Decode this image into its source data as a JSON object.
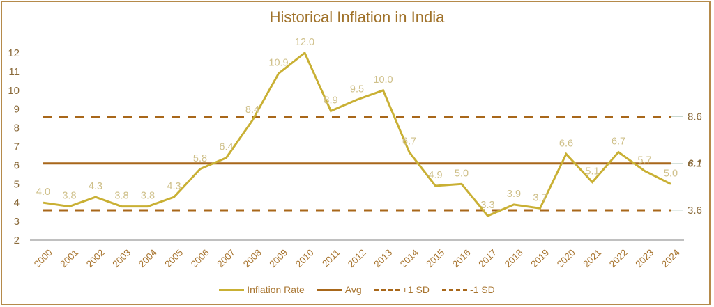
{
  "chart_data": {
    "type": "line",
    "title": "Historical Inflation in India",
    "xlabel": "",
    "ylabel": "",
    "ylim": [
      2,
      12
    ],
    "yticks": [
      "2",
      "3",
      "4",
      "5",
      "6",
      "7",
      "8",
      "9",
      "10",
      "11",
      "12"
    ],
    "grid": false,
    "legend_position": "bottom",
    "categories": [
      "2000",
      "2001",
      "2002",
      "2003",
      "2004",
      "2005",
      "2006",
      "2007",
      "2008",
      "2009",
      "2010",
      "2011",
      "2012",
      "2013",
      "2014",
      "2015",
      "2016",
      "2017",
      "2018",
      "2019",
      "2020",
      "2021",
      "2022",
      "2023",
      "2024"
    ],
    "series": [
      {
        "name": "Inflation Rate",
        "color": "#c9b034",
        "values": [
          4.0,
          3.8,
          4.3,
          3.8,
          3.8,
          4.3,
          5.8,
          6.4,
          8.4,
          10.9,
          12.0,
          8.9,
          9.5,
          10.0,
          6.7,
          4.9,
          5.0,
          3.3,
          3.9,
          3.7,
          6.6,
          5.1,
          6.7,
          5.7,
          5.0
        ],
        "labels": [
          "4.0",
          "3.8",
          "4.3",
          "3.8",
          "3.8",
          "4.3",
          "5.8",
          "6.4",
          "8.4",
          "10.9",
          "12.0",
          "8.9",
          "9.5",
          "10.0",
          "6.7",
          "4.9",
          "5.0",
          "3.3",
          "3.9",
          "3.7",
          "6.6",
          "5.1",
          "6.7",
          "5.7",
          "5.0"
        ]
      },
      {
        "name": "Avg",
        "color": "#a8671a",
        "value": 6.1,
        "label": "6.1",
        "style": "solid"
      },
      {
        "name": "+1 SD",
        "color": "#a8671a",
        "value": 8.6,
        "label": "8.6",
        "style": "dashed"
      },
      {
        "name": "-1 SD",
        "color": "#a8671a",
        "value": 3.6,
        "label": "3.6",
        "style": "dashed"
      }
    ]
  }
}
